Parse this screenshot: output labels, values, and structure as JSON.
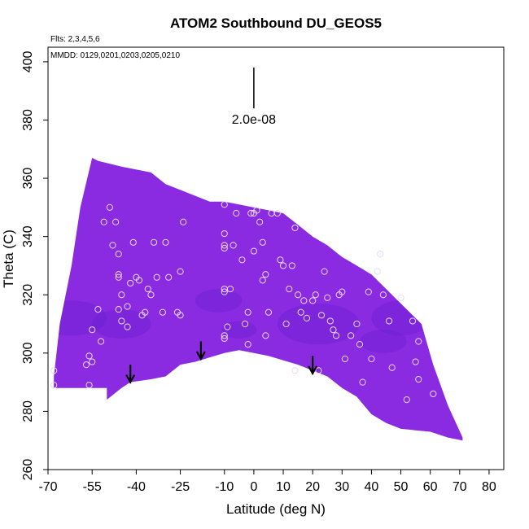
{
  "chart_data": {
    "type": "heatmap",
    "title": "ATOM2 Southbound DU_GEOS5",
    "flights_note": "Flts: 2,3,4,5,6",
    "dates_note": "MMDD: 0129,0201,0203,0205,0210",
    "xlabel": "Latitude (deg N)",
    "ylabel": "Theta (C)",
    "xlim": [
      -70,
      85
    ],
    "ylim": [
      260,
      405
    ],
    "x_ticks": [
      -70,
      -55,
      -40,
      -25,
      -10,
      0,
      10,
      20,
      30,
      40,
      50,
      60,
      70,
      80
    ],
    "y_ticks": [
      260,
      280,
      300,
      320,
      340,
      360,
      380,
      400
    ],
    "scale_label": "2.0e-08",
    "scale_bar": {
      "x": 0,
      "y_top": 398,
      "y_bottom": 384
    },
    "field_color": "#8a2be2",
    "field_color_dark": "#6a1fd0",
    "field_top_boundary": [
      [
        -68,
        288
      ],
      [
        -68,
        292
      ],
      [
        -66,
        310
      ],
      [
        -62,
        330
      ],
      [
        -59,
        350
      ],
      [
        -55,
        367
      ],
      [
        -53,
        366
      ],
      [
        -45,
        364
      ],
      [
        -35,
        362
      ],
      [
        -30,
        358
      ],
      [
        -25,
        356
      ],
      [
        -20,
        354
      ],
      [
        -15,
        352
      ],
      [
        -10,
        352
      ],
      [
        -5,
        351
      ],
      [
        0,
        350
      ],
      [
        5,
        349
      ],
      [
        10,
        348
      ],
      [
        15,
        344
      ],
      [
        20,
        340
      ],
      [
        25,
        337
      ],
      [
        30,
        333
      ],
      [
        35,
        330
      ],
      [
        40,
        327
      ],
      [
        45,
        322
      ],
      [
        50,
        317
      ],
      [
        55,
        312
      ],
      [
        57,
        310
      ],
      [
        61,
        296
      ],
      [
        66,
        282
      ],
      [
        71,
        271
      ]
    ],
    "field_bottom_boundary": [
      [
        71,
        270
      ],
      [
        66,
        271
      ],
      [
        60,
        273
      ],
      [
        50,
        274
      ],
      [
        45,
        276
      ],
      [
        40,
        279
      ],
      [
        35,
        285
      ],
      [
        30,
        288
      ],
      [
        25,
        292
      ],
      [
        20,
        294
      ],
      [
        15,
        296
      ],
      [
        5,
        299
      ],
      [
        0,
        300
      ],
      [
        -5,
        301
      ],
      [
        -10,
        300
      ],
      [
        -20,
        297
      ],
      [
        -25,
        296
      ],
      [
        -30,
        292
      ],
      [
        -35,
        291
      ],
      [
        -42,
        290
      ],
      [
        -45,
        288
      ],
      [
        -50,
        284
      ],
      [
        -50,
        288
      ],
      [
        -68,
        288
      ]
    ],
    "field_dark_patches": [
      [
        -62,
        312,
        12,
        6
      ],
      [
        -45,
        310,
        10,
        5
      ],
      [
        -12,
        318,
        8,
        4
      ],
      [
        -5,
        308,
        6,
        3
      ],
      [
        22,
        310,
        14,
        7
      ],
      [
        50,
        312,
        10,
        6
      ],
      [
        44,
        304,
        8,
        4
      ]
    ],
    "observation_points": [
      [
        -68,
        289
      ],
      [
        -68,
        294
      ],
      [
        -57,
        296
      ],
      [
        -56,
        289
      ],
      [
        -56,
        299
      ],
      [
        -55,
        297
      ],
      [
        -55,
        308
      ],
      [
        -53,
        315
      ],
      [
        -52,
        304
      ],
      [
        -51,
        345
      ],
      [
        -49,
        350
      ],
      [
        -48,
        337
      ],
      [
        -47,
        345
      ],
      [
        -46,
        334
      ],
      [
        -46,
        327
      ],
      [
        -46,
        326
      ],
      [
        -46,
        315
      ],
      [
        -45,
        320
      ],
      [
        -45,
        311
      ],
      [
        -43,
        316
      ],
      [
        -43,
        309
      ],
      [
        -42,
        324
      ],
      [
        -41,
        338
      ],
      [
        -40,
        326
      ],
      [
        -39,
        325
      ],
      [
        -38,
        313
      ],
      [
        -37,
        314
      ],
      [
        -36,
        322
      ],
      [
        -35,
        320
      ],
      [
        -34,
        338
      ],
      [
        -33,
        326
      ],
      [
        -31,
        314
      ],
      [
        -30,
        338
      ],
      [
        -29,
        326
      ],
      [
        -26,
        314
      ],
      [
        -25,
        313
      ],
      [
        -25,
        328
      ],
      [
        -24,
        345
      ],
      [
        -10,
        351
      ],
      [
        -10,
        341
      ],
      [
        -10,
        337
      ],
      [
        -10,
        336
      ],
      [
        -10,
        322
      ],
      [
        -10,
        321
      ],
      [
        -9,
        309
      ],
      [
        -10,
        306
      ],
      [
        -10,
        305
      ],
      [
        -8,
        322
      ],
      [
        -7,
        337
      ],
      [
        -6,
        348
      ],
      [
        -4,
        332
      ],
      [
        -3,
        310
      ],
      [
        -2,
        314
      ],
      [
        -2,
        303
      ],
      [
        -1,
        348
      ],
      [
        0,
        335
      ],
      [
        0,
        348
      ],
      [
        1,
        349
      ],
      [
        2,
        345
      ],
      [
        3,
        338
      ],
      [
        3,
        325
      ],
      [
        4,
        306
      ],
      [
        4,
        327
      ],
      [
        5,
        314
      ],
      [
        6,
        348
      ],
      [
        8,
        348
      ],
      [
        9,
        332
      ],
      [
        10,
        330
      ],
      [
        11,
        310
      ],
      [
        12,
        322
      ],
      [
        13,
        330
      ],
      [
        14,
        343
      ],
      [
        14,
        294
      ],
      [
        15,
        320
      ],
      [
        16,
        314
      ],
      [
        17,
        318
      ],
      [
        18,
        312
      ],
      [
        20,
        318
      ],
      [
        21,
        320
      ],
      [
        22,
        294
      ],
      [
        23,
        313
      ],
      [
        24,
        328
      ],
      [
        25,
        319
      ],
      [
        26,
        311
      ],
      [
        27,
        308
      ],
      [
        28,
        306
      ],
      [
        29,
        320
      ],
      [
        30,
        321
      ],
      [
        31,
        298
      ],
      [
        33,
        306
      ],
      [
        35,
        310
      ],
      [
        36,
        303
      ],
      [
        37,
        290
      ],
      [
        39,
        321
      ],
      [
        40,
        298
      ],
      [
        42,
        328
      ],
      [
        43,
        334
      ],
      [
        44,
        320
      ],
      [
        46,
        311
      ],
      [
        47,
        295
      ],
      [
        50,
        319
      ],
      [
        52,
        284
      ],
      [
        54,
        311
      ],
      [
        55,
        297
      ],
      [
        56,
        304
      ],
      [
        56,
        291
      ],
      [
        61,
        286
      ]
    ],
    "arrows": [
      {
        "x": -42,
        "y_top": 296,
        "y_bottom": 290
      },
      {
        "x": -18,
        "y_top": 304,
        "y_bottom": 298
      },
      {
        "x": 20,
        "y_top": 299,
        "y_bottom": 293
      }
    ],
    "grid": false,
    "legend": "none"
  }
}
